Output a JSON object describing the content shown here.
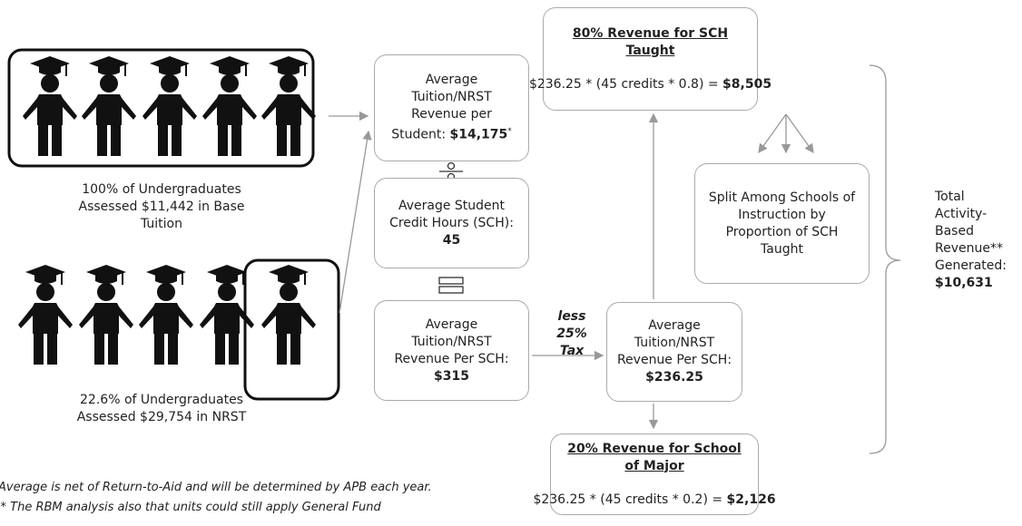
{
  "left": {
    "top_caption": "100% of Undergraduates Assessed $11,442 in Base Tuition",
    "bottom_caption": "22.6% of Undergraduates Assessed $29,754 in NRST"
  },
  "boxes": {
    "per_student": {
      "label": "Average Tuition/NRST Revenue per Student:",
      "value": "$14,175",
      "mark": "*"
    },
    "credit_hours": {
      "label": "Average Student Credit Hours (SCH):",
      "value": "45"
    },
    "per_sch": {
      "label": "Average Tuition/NRST Revenue Per SCH:",
      "value": "$315"
    },
    "tax": {
      "line1": "less",
      "line2": "25% Tax"
    },
    "per_sch_net": {
      "label": "Average Tuition/NRST Revenue Per SCH:",
      "value": "$236.25"
    },
    "sch_taught": {
      "title": "80% Revenue for SCH Taught",
      "formula": "$236.25 * (45 credits * 0.8) =",
      "value": "$8,505"
    },
    "split": {
      "label": "Split Among Schools of Instruction by Proportion of SCH Taught"
    },
    "school_major": {
      "title": "20% Revenue for School of Major",
      "formula": "$236.25 * (45 credits * 0.2) =",
      "value": "$2,126"
    },
    "total": {
      "label": "Total Activity-Based Revenue** Generated:",
      "value": "$10,631"
    }
  },
  "footnotes": [
    "Average is net of Return-to-Aid and will be determined by APB each year.",
    "** The RBM analysis also that units could still apply General Fund"
  ]
}
